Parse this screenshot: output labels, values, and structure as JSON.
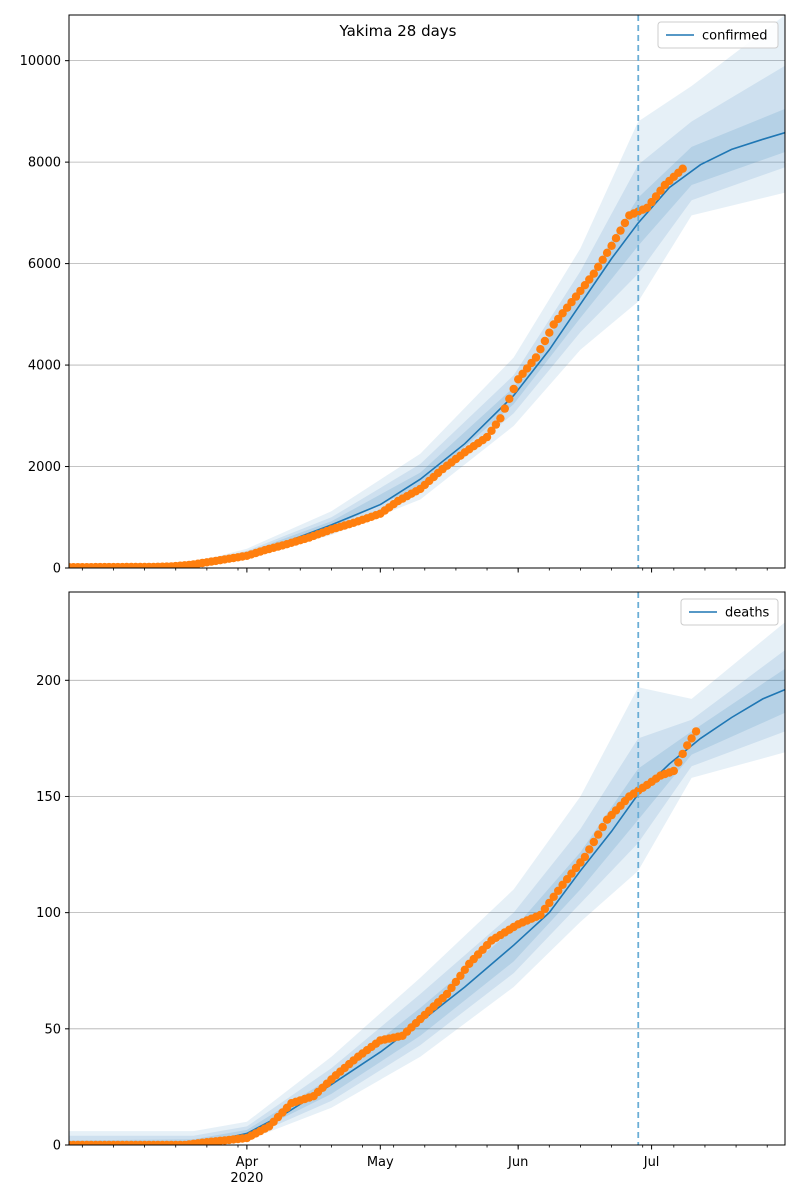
{
  "figure": {
    "title": "Yakima 28 days"
  },
  "chart_data": [
    {
      "type": "line",
      "title": "Yakima 28 days",
      "xlabel": "",
      "ylabel": "",
      "x_axis": {
        "start_date": "2020-02-21",
        "end_date": "2020-07-31",
        "major_ticks": [
          {
            "date": "2020-04-01",
            "label": "Apr",
            "sublabel": "2020"
          },
          {
            "date": "2020-05-01",
            "label": "May",
            "sublabel": ""
          },
          {
            "date": "2020-06-01",
            "label": "Jun",
            "sublabel": ""
          },
          {
            "date": "2020-07-01",
            "label": "Jul",
            "sublabel": ""
          }
        ]
      },
      "ylim": [
        0,
        10900
      ],
      "yticks": [
        0,
        2000,
        4000,
        6000,
        8000,
        10000
      ],
      "grid": "y",
      "legend": {
        "location": "top-right",
        "entries": [
          "confirmed"
        ]
      },
      "forecast_start": "2020-06-28",
      "series": [
        {
          "name": "confirmed",
          "kind": "model",
          "color": "#1f77b4",
          "points": [
            [
              "2020-02-21",
              10
            ],
            [
              "2020-03-05",
              12
            ],
            [
              "2020-03-15",
              20
            ],
            [
              "2020-03-20",
              60
            ],
            [
              "2020-03-25",
              120
            ],
            [
              "2020-04-01",
              280
            ],
            [
              "2020-04-10",
              520
            ],
            [
              "2020-04-20",
              850
            ],
            [
              "2020-05-01",
              1250
            ],
            [
              "2020-05-10",
              1750
            ],
            [
              "2020-05-20",
              2450
            ],
            [
              "2020-05-31",
              3400
            ],
            [
              "2020-06-08",
              4300
            ],
            [
              "2020-06-15",
              5200
            ],
            [
              "2020-06-22",
              6100
            ],
            [
              "2020-06-28",
              6800
            ],
            [
              "2020-07-05",
              7500
            ],
            [
              "2020-07-12",
              7950
            ],
            [
              "2020-07-19",
              8250
            ],
            [
              "2020-07-26",
              8450
            ],
            [
              "2020-07-31",
              8580
            ]
          ]
        },
        {
          "name": "confirmed",
          "kind": "observed",
          "color": "#ff7f0e",
          "points": [
            [
              "2020-02-21",
              15
            ],
            [
              "2020-03-01",
              18
            ],
            [
              "2020-03-10",
              20
            ],
            [
              "2020-03-15",
              30
            ],
            [
              "2020-03-20",
              70
            ],
            [
              "2020-03-25",
              140
            ],
            [
              "2020-04-01",
              240
            ],
            [
              "2020-04-05",
              350
            ],
            [
              "2020-04-10",
              470
            ],
            [
              "2020-04-15",
              600
            ],
            [
              "2020-04-20",
              760
            ],
            [
              "2020-04-25",
              890
            ],
            [
              "2020-05-01",
              1070
            ],
            [
              "2020-05-05",
              1320
            ],
            [
              "2020-05-10",
              1560
            ],
            [
              "2020-05-15",
              1950
            ],
            [
              "2020-05-20",
              2280
            ],
            [
              "2020-05-25",
              2580
            ],
            [
              "2020-05-28",
              2950
            ],
            [
              "2020-06-01",
              3720
            ],
            [
              "2020-06-05",
              4150
            ],
            [
              "2020-06-09",
              4800
            ],
            [
              "2020-06-14",
              5350
            ],
            [
              "2020-06-18",
              5800
            ],
            [
              "2020-06-22",
              6350
            ],
            [
              "2020-06-26",
              6950
            ],
            [
              "2020-06-30",
              7100
            ],
            [
              "2020-07-04",
              7550
            ],
            [
              "2020-07-08",
              7870
            ]
          ]
        }
      ],
      "uncertainty_bands": [
        {
          "level": "outer",
          "lower": [
            [
              "2020-02-21",
              0
            ],
            [
              "2020-03-20",
              30
            ],
            [
              "2020-04-01",
              200
            ],
            [
              "2020-04-20",
              650
            ],
            [
              "2020-05-10",
              1350
            ],
            [
              "2020-05-31",
              2800
            ],
            [
              "2020-06-15",
              4300
            ],
            [
              "2020-06-28",
              5250
            ],
            [
              "2020-07-10",
              6950
            ],
            [
              "2020-07-31",
              7400
            ]
          ],
          "upper": [
            [
              "2020-02-21",
              40
            ],
            [
              "2020-03-20",
              110
            ],
            [
              "2020-04-01",
              380
            ],
            [
              "2020-04-20",
              1120
            ],
            [
              "2020-05-10",
              2250
            ],
            [
              "2020-05-31",
              4150
            ],
            [
              "2020-06-15",
              6300
            ],
            [
              "2020-06-28",
              8800
            ],
            [
              "2020-07-10",
              9500
            ],
            [
              "2020-07-31",
              10900
            ]
          ]
        },
        {
          "level": "middle",
          "lower": [
            [
              "2020-02-21",
              5
            ],
            [
              "2020-03-20",
              40
            ],
            [
              "2020-04-01",
              230
            ],
            [
              "2020-04-20",
              730
            ],
            [
              "2020-05-10",
              1500
            ],
            [
              "2020-05-31",
              3050
            ],
            [
              "2020-06-15",
              4650
            ],
            [
              "2020-06-28",
              5800
            ],
            [
              "2020-07-10",
              7250
            ],
            [
              "2020-07-31",
              7900
            ]
          ],
          "upper": [
            [
              "2020-02-21",
              25
            ],
            [
              "2020-03-20",
              90
            ],
            [
              "2020-04-01",
              340
            ],
            [
              "2020-04-20",
              1000
            ],
            [
              "2020-05-10",
              2050
            ],
            [
              "2020-05-31",
              3800
            ],
            [
              "2020-06-15",
              5850
            ],
            [
              "2020-06-28",
              7950
            ],
            [
              "2020-07-10",
              8800
            ],
            [
              "2020-07-31",
              9900
            ]
          ]
        },
        {
          "level": "inner",
          "lower": [
            [
              "2020-02-21",
              8
            ],
            [
              "2020-03-20",
              50
            ],
            [
              "2020-04-01",
              255
            ],
            [
              "2020-04-20",
              790
            ],
            [
              "2020-05-10",
              1620
            ],
            [
              "2020-05-31",
              3230
            ],
            [
              "2020-06-15",
              4930
            ],
            [
              "2020-06-28",
              6350
            ],
            [
              "2020-07-10",
              7550
            ],
            [
              "2020-07-31",
              8200
            ]
          ],
          "upper": [
            [
              "2020-02-21",
              15
            ],
            [
              "2020-03-20",
              75
            ],
            [
              "2020-04-01",
              310
            ],
            [
              "2020-04-20",
              920
            ],
            [
              "2020-05-10",
              1880
            ],
            [
              "2020-05-31",
              3560
            ],
            [
              "2020-06-15",
              5470
            ],
            [
              "2020-06-28",
              7300
            ],
            [
              "2020-07-10",
              8300
            ],
            [
              "2020-07-31",
              9050
            ]
          ]
        }
      ]
    },
    {
      "type": "line",
      "title": "",
      "xlabel": "",
      "ylabel": "",
      "x_axis": {
        "start_date": "2020-02-21",
        "end_date": "2020-07-31",
        "major_ticks": [
          {
            "date": "2020-04-01",
            "label": "Apr",
            "sublabel": "2020"
          },
          {
            "date": "2020-05-01",
            "label": "May",
            "sublabel": ""
          },
          {
            "date": "2020-06-01",
            "label": "Jun",
            "sublabel": ""
          },
          {
            "date": "2020-07-01",
            "label": "Jul",
            "sublabel": ""
          }
        ]
      },
      "ylim": [
        0,
        238
      ],
      "yticks": [
        0,
        50,
        100,
        150,
        200
      ],
      "grid": "y",
      "legend": {
        "location": "top-right",
        "entries": [
          "deaths"
        ]
      },
      "forecast_start": "2020-06-28",
      "series": [
        {
          "name": "deaths",
          "kind": "model",
          "color": "#1f77b4",
          "points": [
            [
              "2020-02-21",
              0.3
            ],
            [
              "2020-03-15",
              0.5
            ],
            [
              "2020-03-25",
              2
            ],
            [
              "2020-04-01",
              5
            ],
            [
              "2020-04-10",
              14
            ],
            [
              "2020-04-20",
              26
            ],
            [
              "2020-05-01",
              40
            ],
            [
              "2020-05-10",
              53
            ],
            [
              "2020-05-20",
              68
            ],
            [
              "2020-05-31",
              86
            ],
            [
              "2020-06-08",
              100
            ],
            [
              "2020-06-15",
              118
            ],
            [
              "2020-06-22",
              135
            ],
            [
              "2020-06-28",
              151
            ],
            [
              "2020-07-05",
              164
            ],
            [
              "2020-07-12",
              175
            ],
            [
              "2020-07-19",
              184
            ],
            [
              "2020-07-26",
              192
            ],
            [
              "2020-07-31",
              196
            ]
          ]
        },
        {
          "name": "deaths",
          "kind": "observed",
          "color": "#ff7f0e",
          "points": [
            [
              "2020-02-21",
              0
            ],
            [
              "2020-03-01",
              0
            ],
            [
              "2020-03-10",
              0
            ],
            [
              "2020-03-18",
              0
            ],
            [
              "2020-03-22",
              1
            ],
            [
              "2020-03-27",
              2
            ],
            [
              "2020-04-01",
              3
            ],
            [
              "2020-04-06",
              8
            ],
            [
              "2020-04-11",
              18
            ],
            [
              "2020-04-16",
              21
            ],
            [
              "2020-04-21",
              30
            ],
            [
              "2020-04-26",
              38
            ],
            [
              "2020-05-01",
              45
            ],
            [
              "2020-05-06",
              47
            ],
            [
              "2020-05-11",
              56
            ],
            [
              "2020-05-16",
              65
            ],
            [
              "2020-05-21",
              78
            ],
            [
              "2020-05-26",
              88
            ],
            [
              "2020-06-01",
              95
            ],
            [
              "2020-06-06",
              99
            ],
            [
              "2020-06-11",
              112
            ],
            [
              "2020-06-16",
              124
            ],
            [
              "2020-06-21",
              140
            ],
            [
              "2020-06-26",
              150
            ],
            [
              "2020-06-30",
              155
            ],
            [
              "2020-07-03",
              159
            ],
            [
              "2020-07-06",
              161
            ],
            [
              "2020-07-09",
              172
            ],
            [
              "2020-07-11",
              178
            ]
          ]
        }
      ],
      "uncertainty_bands": [
        {
          "level": "outer",
          "lower": [
            [
              "2020-02-21",
              0
            ],
            [
              "2020-03-20",
              0
            ],
            [
              "2020-04-01",
              2
            ],
            [
              "2020-04-20",
              16
            ],
            [
              "2020-05-10",
              38
            ],
            [
              "2020-05-31",
              68
            ],
            [
              "2020-06-15",
              96
            ],
            [
              "2020-06-28",
              118
            ],
            [
              "2020-07-10",
              158
            ],
            [
              "2020-07-31",
              169
            ]
          ],
          "upper": [
            [
              "2020-02-21",
              6
            ],
            [
              "2020-03-20",
              6
            ],
            [
              "2020-04-01",
              10
            ],
            [
              "2020-04-20",
              38
            ],
            [
              "2020-05-10",
              72
            ],
            [
              "2020-05-31",
              110
            ],
            [
              "2020-06-15",
              150
            ],
            [
              "2020-06-28",
              197
            ],
            [
              "2020-07-10",
              192
            ],
            [
              "2020-07-31",
              225
            ]
          ]
        },
        {
          "level": "middle",
          "lower": [
            [
              "2020-02-21",
              0
            ],
            [
              "2020-03-20",
              0.5
            ],
            [
              "2020-04-01",
              3
            ],
            [
              "2020-04-20",
              19
            ],
            [
              "2020-05-10",
              43
            ],
            [
              "2020-05-31",
              74
            ],
            [
              "2020-06-15",
              104
            ],
            [
              "2020-06-28",
              130
            ],
            [
              "2020-07-10",
              163
            ],
            [
              "2020-07-31",
              178
            ]
          ],
          "upper": [
            [
              "2020-02-21",
              4
            ],
            [
              "2020-03-20",
              4
            ],
            [
              "2020-04-01",
              8
            ],
            [
              "2020-04-20",
              33
            ],
            [
              "2020-05-10",
              65
            ],
            [
              "2020-05-31",
              100
            ],
            [
              "2020-06-15",
              136
            ],
            [
              "2020-06-28",
              175
            ],
            [
              "2020-07-10",
              183
            ],
            [
              "2020-07-31",
              213
            ]
          ]
        },
        {
          "level": "inner",
          "lower": [
            [
              "2020-02-21",
              0
            ],
            [
              "2020-03-20",
              1
            ],
            [
              "2020-04-01",
              4
            ],
            [
              "2020-04-20",
              22
            ],
            [
              "2020-05-10",
              47
            ],
            [
              "2020-05-31",
              79
            ],
            [
              "2020-06-15",
              110
            ],
            [
              "2020-06-28",
              140
            ],
            [
              "2020-07-10",
              168
            ],
            [
              "2020-07-31",
              186
            ]
          ],
          "upper": [
            [
              "2020-02-21",
              2
            ],
            [
              "2020-03-20",
              2.5
            ],
            [
              "2020-04-01",
              6.5
            ],
            [
              "2020-04-20",
              29
            ],
            [
              "2020-05-10",
              59
            ],
            [
              "2020-05-31",
              93
            ],
            [
              "2020-06-15",
              126
            ],
            [
              "2020-06-28",
              162
            ],
            [
              "2020-07-10",
              178
            ],
            [
              "2020-07-31",
              205
            ]
          ]
        }
      ]
    }
  ],
  "style": {
    "band_color": "#1f77b4",
    "band_opacities": [
      0.11,
      0.12,
      0.14
    ],
    "forecast_line_color": "#6baed6",
    "grid_color": "#b0b0b0"
  }
}
